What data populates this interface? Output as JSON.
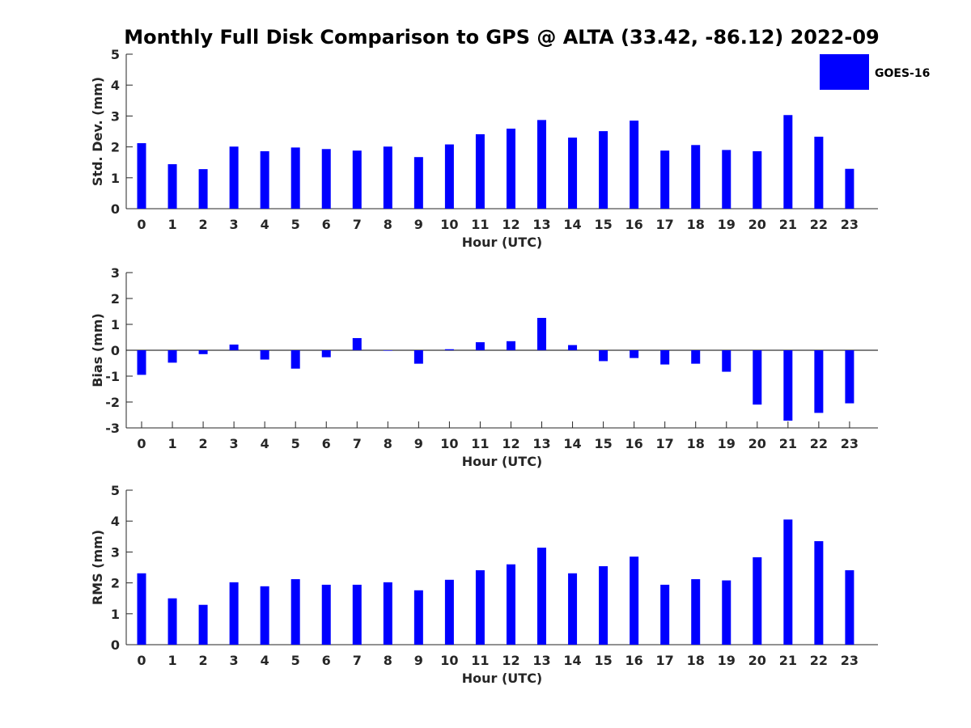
{
  "chart_data": [
    {
      "type": "bar",
      "title": "Monthly Full Disk Comparison to GPS @ ALTA (33.42, -86.12) 2022-09",
      "xlabel": "Hour (UTC)",
      "ylabel": "Std. Dev. (mm)",
      "ylim": [
        0,
        5
      ],
      "yticks": [
        "0",
        "1",
        "2",
        "3",
        "4",
        "5"
      ],
      "categories": [
        "0",
        "1",
        "2",
        "3",
        "4",
        "5",
        "6",
        "7",
        "8",
        "9",
        "10",
        "11",
        "12",
        "13",
        "14",
        "15",
        "16",
        "17",
        "18",
        "19",
        "20",
        "21",
        "22",
        "23"
      ],
      "series": [
        {
          "name": "GOES-16",
          "color": "#0000ff",
          "values": [
            2.12,
            1.44,
            1.28,
            2.01,
            1.86,
            1.98,
            1.93,
            1.88,
            2.01,
            1.67,
            2.08,
            2.41,
            2.59,
            2.87,
            2.3,
            2.51,
            2.85,
            1.88,
            2.06,
            1.9,
            1.86,
            3.03,
            2.33,
            1.29
          ]
        }
      ]
    },
    {
      "type": "bar",
      "xlabel": "Hour (UTC)",
      "ylabel": "Bias (mm)",
      "ylim": [
        -3,
        3
      ],
      "yticks": [
        "-3",
        "-2",
        "-1",
        "0",
        "1",
        "2",
        "3"
      ],
      "categories": [
        "0",
        "1",
        "2",
        "3",
        "4",
        "5",
        "6",
        "7",
        "8",
        "9",
        "10",
        "11",
        "12",
        "13",
        "14",
        "15",
        "16",
        "17",
        "18",
        "19",
        "20",
        "21",
        "22",
        "23"
      ],
      "series": [
        {
          "name": "GOES-16",
          "color": "#0000ff",
          "values": [
            -0.95,
            -0.48,
            -0.15,
            0.22,
            -0.36,
            -0.71,
            -0.27,
            0.47,
            -0.02,
            -0.52,
            0.04,
            0.31,
            0.35,
            1.25,
            0.2,
            -0.42,
            -0.3,
            -0.55,
            -0.52,
            -0.83,
            -2.1,
            -2.72,
            -2.42,
            -2.05
          ]
        }
      ]
    },
    {
      "type": "bar",
      "xlabel": "Hour (UTC)",
      "ylabel": "RMS (mm)",
      "ylim": [
        0,
        5
      ],
      "yticks": [
        "0",
        "1",
        "2",
        "3",
        "4",
        "5"
      ],
      "categories": [
        "0",
        "1",
        "2",
        "3",
        "4",
        "5",
        "6",
        "7",
        "8",
        "9",
        "10",
        "11",
        "12",
        "13",
        "14",
        "15",
        "16",
        "17",
        "18",
        "19",
        "20",
        "21",
        "22",
        "23"
      ],
      "series": [
        {
          "name": "GOES-16",
          "color": "#0000ff",
          "values": [
            2.31,
            1.5,
            1.29,
            2.02,
            1.89,
            2.12,
            1.94,
            1.94,
            2.02,
            1.76,
            2.1,
            2.41,
            2.6,
            3.14,
            2.31,
            2.54,
            2.85,
            1.94,
            2.12,
            2.08,
            2.83,
            4.05,
            3.35,
            2.41
          ]
        }
      ]
    }
  ],
  "legend": {
    "label": "GOES-16",
    "color": "#0000ff"
  }
}
